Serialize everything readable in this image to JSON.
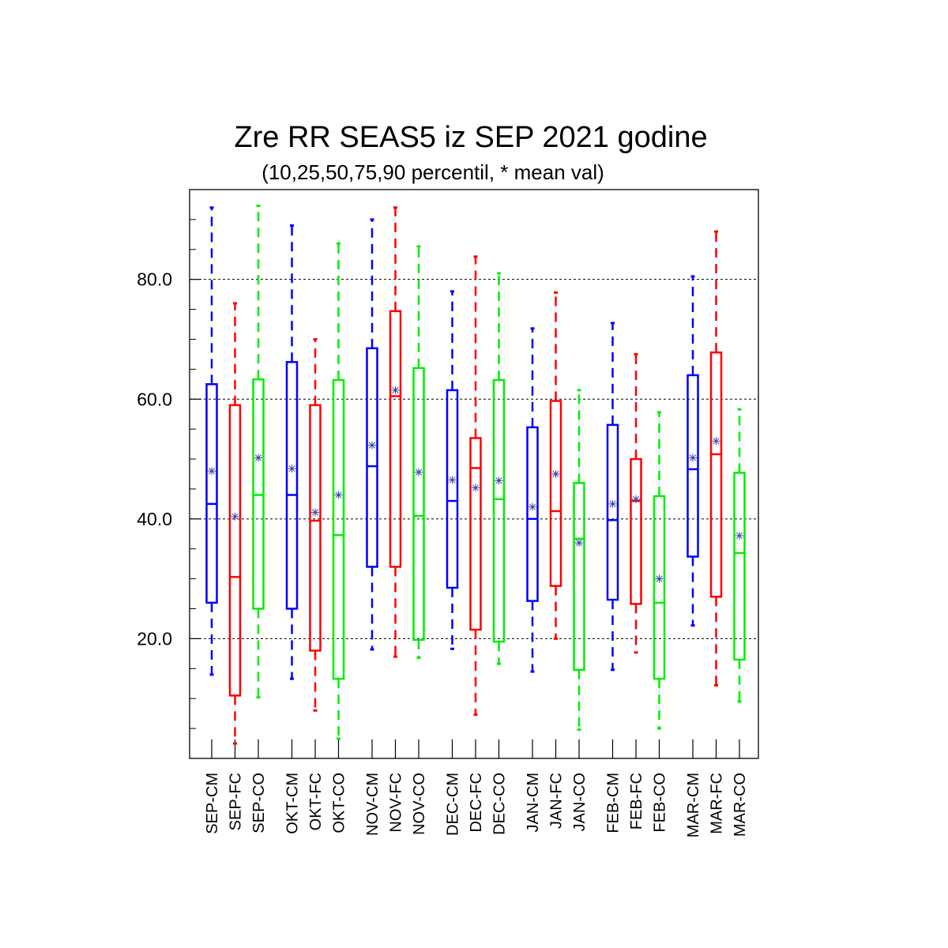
{
  "chart_data": {
    "type": "boxplot",
    "title": "Zre RR SEAS5 iz SEP 2021 godine",
    "subtitle": "(10,25,50,75,90 percentil, * mean val)",
    "xlabel": "",
    "ylabel": "",
    "ylim": [
      0,
      95
    ],
    "yticks": [
      20,
      40,
      60,
      80
    ],
    "ytick_labels": [
      "20.0",
      "40.0",
      "60.0",
      "80.0"
    ],
    "grid": "horizontal dashed",
    "legend": "none",
    "colors": {
      "CM": "#0000ff",
      "FC": "#ff0000",
      "CO": "#00ee00",
      "mean": "#3344aa"
    },
    "boxes": [
      {
        "label": "SEP-CM",
        "type": "CM",
        "p10": 14.0,
        "p25": 26.0,
        "median": 42.5,
        "p75": 62.5,
        "p90": 92.0,
        "mean": 48.0
      },
      {
        "label": "SEP-FC",
        "type": "FC",
        "p10": 2.5,
        "p25": 10.5,
        "median": 30.3,
        "p75": 59.0,
        "p90": 76.0,
        "mean": 40.4
      },
      {
        "label": "SEP-CO",
        "type": "CO",
        "p10": 10.2,
        "p25": 25.0,
        "median": 44.0,
        "p75": 63.3,
        "p90": 92.3,
        "mean": 50.2
      },
      {
        "label": "OKT-CM",
        "type": "CM",
        "p10": 13.3,
        "p25": 25.0,
        "median": 44.0,
        "p75": 66.2,
        "p90": 89.0,
        "mean": 48.4
      },
      {
        "label": "OKT-FC",
        "type": "FC",
        "p10": 8.0,
        "p25": 18.0,
        "median": 39.7,
        "p75": 59.0,
        "p90": 70.0,
        "mean": 41.1
      },
      {
        "label": "OKT-CO",
        "type": "CO",
        "p10": 3.3,
        "p25": 13.3,
        "median": 37.3,
        "p75": 63.2,
        "p90": 86.0,
        "mean": 44.0
      },
      {
        "label": "NOV-CM",
        "type": "CM",
        "p10": 18.2,
        "p25": 32.0,
        "median": 48.8,
        "p75": 68.5,
        "p90": 90.0,
        "mean": 52.3
      },
      {
        "label": "NOV-FC",
        "type": "FC",
        "p10": 17.0,
        "p25": 32.0,
        "median": 60.5,
        "p75": 74.7,
        "p90": 92.0,
        "mean": 61.5
      },
      {
        "label": "NOV-CO",
        "type": "CO",
        "p10": 16.8,
        "p25": 19.8,
        "median": 40.5,
        "p75": 65.2,
        "p90": 85.5,
        "mean": 47.8
      },
      {
        "label": "DEC-CM",
        "type": "CM",
        "p10": 18.3,
        "p25": 28.5,
        "median": 43.0,
        "p75": 61.5,
        "p90": 78.0,
        "mean": 46.5
      },
      {
        "label": "DEC-FC",
        "type": "FC",
        "p10": 7.3,
        "p25": 21.5,
        "median": 48.5,
        "p75": 53.5,
        "p90": 83.8,
        "mean": 45.2
      },
      {
        "label": "DEC-CO",
        "type": "CO",
        "p10": 15.8,
        "p25": 19.5,
        "median": 43.3,
        "p75": 63.2,
        "p90": 81.0,
        "mean": 46.4
      },
      {
        "label": "JAN-CM",
        "type": "CM",
        "p10": 14.5,
        "p25": 26.3,
        "median": 40.0,
        "p75": 55.3,
        "p90": 71.8,
        "mean": 42.0
      },
      {
        "label": "JAN-FC",
        "type": "FC",
        "p10": 20.0,
        "p25": 28.8,
        "median": 41.3,
        "p75": 59.7,
        "p90": 77.8,
        "mean": 47.5
      },
      {
        "label": "JAN-CO",
        "type": "CO",
        "p10": 4.8,
        "p25": 14.8,
        "median": 36.7,
        "p75": 46.0,
        "p90": 61.5,
        "mean": 36.0
      },
      {
        "label": "FEB-CM",
        "type": "CM",
        "p10": 14.8,
        "p25": 26.5,
        "median": 39.8,
        "p75": 55.7,
        "p90": 72.7,
        "mean": 42.5
      },
      {
        "label": "FEB-FC",
        "type": "FC",
        "p10": 17.7,
        "p25": 25.8,
        "median": 43.0,
        "p75": 50.0,
        "p90": 67.5,
        "mean": 43.3
      },
      {
        "label": "FEB-CO",
        "type": "CO",
        "p10": 5.0,
        "p25": 13.3,
        "median": 26.0,
        "p75": 43.8,
        "p90": 57.8,
        "mean": 30.0
      },
      {
        "label": "MAR-CM",
        "type": "CM",
        "p10": 22.2,
        "p25": 33.7,
        "median": 48.3,
        "p75": 64.0,
        "p90": 80.5,
        "mean": 50.2
      },
      {
        "label": "MAR-FC",
        "type": "FC",
        "p10": 12.2,
        "p25": 27.0,
        "median": 50.8,
        "p75": 67.8,
        "p90": 88.0,
        "mean": 53.0
      },
      {
        "label": "MAR-CO",
        "type": "CO",
        "p10": 9.5,
        "p25": 16.5,
        "median": 34.3,
        "p75": 47.7,
        "p90": 58.3,
        "mean": 37.2
      }
    ]
  }
}
